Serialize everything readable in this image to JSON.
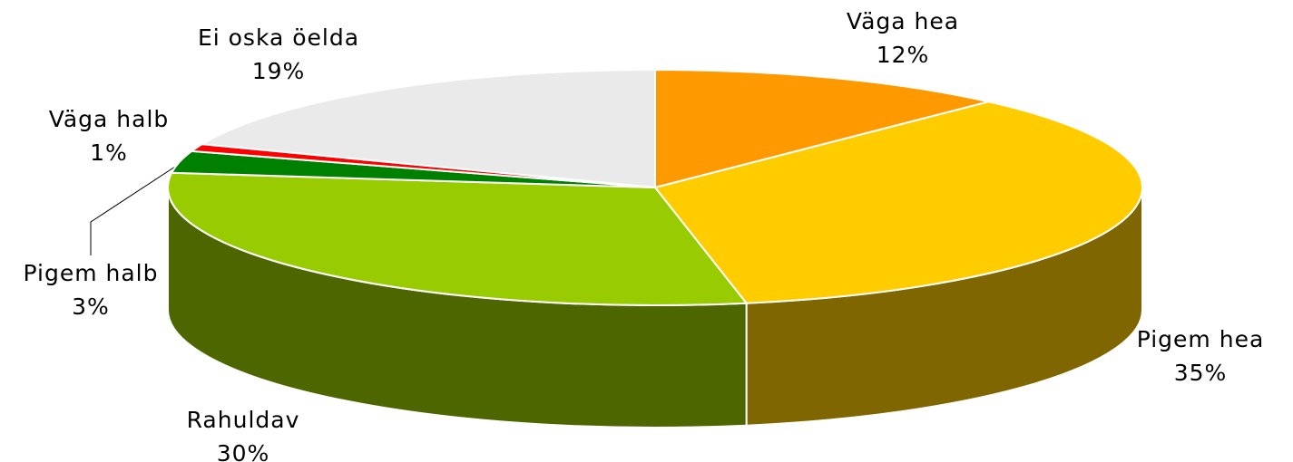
{
  "chart_data": {
    "type": "pie3d",
    "categories": [
      "Väga hea",
      "Pigem hea",
      "Rahuldav",
      "Pigem halb",
      "Väga halb",
      "Ei oska öelda"
    ],
    "values": [
      12,
      35,
      30,
      3,
      1,
      19
    ],
    "value_labels": [
      "12%",
      "35%",
      "30%",
      "3%",
      "1%",
      "19%"
    ],
    "colors": [
      "#FF9900",
      "#FFCC00",
      "#99CC00",
      "#008000",
      "#FF0000",
      "#EAEAEA"
    ]
  }
}
